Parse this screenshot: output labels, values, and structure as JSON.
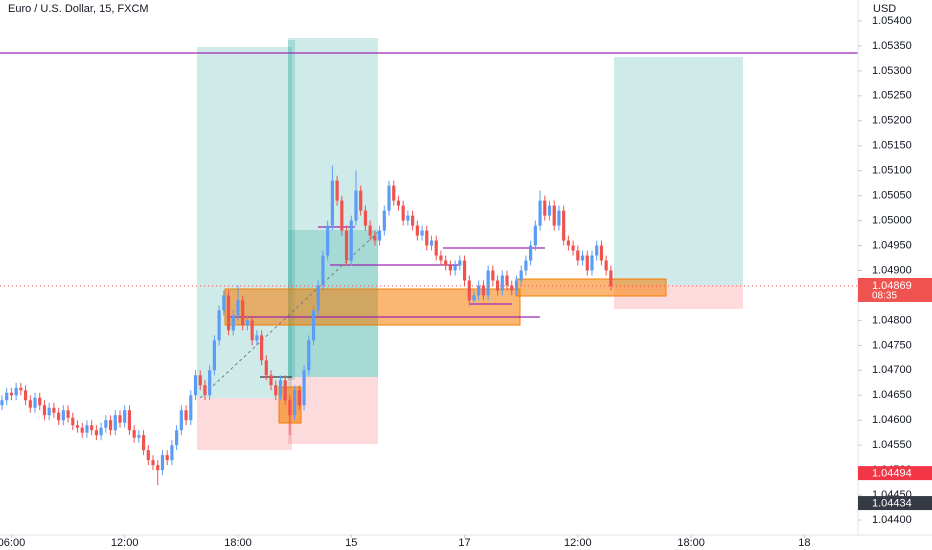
{
  "chart_data": {
    "type": "candlestick",
    "title": "Euro / U.S. Dollar, 15, FXCM",
    "currency": "USD",
    "up_color": "#5b9cf6",
    "down_color": "#ef5350",
    "grid": false,
    "xlim": [
      -0.42,
      181.36
    ],
    "xticks": [
      {
        "value": 2,
        "label": "06:00"
      },
      {
        "value": 26,
        "label": "12:00"
      },
      {
        "value": 50,
        "label": "18:00"
      },
      {
        "value": 74,
        "label": "15"
      },
      {
        "value": 98,
        "label": "17"
      },
      {
        "value": 122,
        "label": "12:00"
      },
      {
        "value": 146,
        "label": "18:00"
      },
      {
        "value": 170,
        "label": "18"
      }
    ],
    "ylim": [
      1.0437,
      1.05442
    ],
    "yticks": [
      {
        "value": 1.054,
        "label": "1.05400"
      },
      {
        "value": 1.0535,
        "label": "1.05350"
      },
      {
        "value": 1.053,
        "label": "1.05300"
      },
      {
        "value": 1.0525,
        "label": "1.05250"
      },
      {
        "value": 1.052,
        "label": "1.05200"
      },
      {
        "value": 1.0515,
        "label": "1.05150"
      },
      {
        "value": 1.051,
        "label": "1.05100"
      },
      {
        "value": 1.0505,
        "label": "1.05050"
      },
      {
        "value": 1.05,
        "label": "1.05000"
      },
      {
        "value": 1.0495,
        "label": "1.04950"
      },
      {
        "value": 1.049,
        "label": "1.04900"
      },
      {
        "value": 1.0485,
        "label": "1.04850"
      },
      {
        "value": 1.048,
        "label": "1.04800"
      },
      {
        "value": 1.0475,
        "label": "1.04750"
      },
      {
        "value": 1.047,
        "label": "1.04700"
      },
      {
        "value": 1.0465,
        "label": "1.04650"
      },
      {
        "value": 1.046,
        "label": "1.04600"
      },
      {
        "value": 1.0455,
        "label": "1.04550"
      },
      {
        "value": 1.045,
        "label": "1.04500"
      },
      {
        "value": 1.0445,
        "label": "1.04450"
      },
      {
        "value": 1.044,
        "label": "1.04400"
      }
    ],
    "x": [
      0,
      1,
      2,
      3,
      4,
      5,
      6,
      7,
      8,
      9,
      10,
      11,
      12,
      13,
      14,
      15,
      16,
      17,
      18,
      19,
      20,
      21,
      22,
      23,
      24,
      25,
      26,
      27,
      28,
      29,
      30,
      31,
      32,
      33,
      34,
      35,
      36,
      37,
      38,
      39,
      40,
      41,
      42,
      43,
      44,
      45,
      46,
      47,
      48,
      49,
      50,
      51,
      52,
      53,
      54,
      55,
      56,
      57,
      58,
      59,
      60,
      61,
      62,
      63,
      64,
      65,
      66,
      67,
      68,
      69,
      70,
      71,
      72,
      73,
      74,
      75,
      76,
      77,
      78,
      79,
      80,
      81,
      82,
      83,
      84,
      85,
      86,
      87,
      88,
      89,
      90,
      91,
      92,
      93,
      94,
      95,
      96,
      97,
      98,
      99,
      100,
      101,
      102,
      103,
      104,
      105,
      106,
      107,
      108,
      109,
      110,
      111,
      112,
      113,
      114,
      115,
      116,
      117,
      118,
      119,
      120,
      121,
      122,
      123,
      124,
      125,
      126,
      127,
      128,
      129
    ],
    "open": [
      1.0463,
      1.0464,
      1.04655,
      1.0465,
      1.04665,
      1.0466,
      1.0464,
      1.04625,
      1.04645,
      1.0463,
      1.0461,
      1.04625,
      1.04615,
      1.046,
      1.0462,
      1.04605,
      1.0459,
      1.04585,
      1.04575,
      1.0459,
      1.0458,
      1.0457,
      1.04585,
      1.046,
      1.0458,
      1.0461,
      1.04595,
      1.0462,
      1.0458,
      1.04565,
      1.0457,
      1.0454,
      1.0452,
      1.0451,
      1.045,
      1.0453,
      1.0452,
      1.0455,
      1.0458,
      1.0462,
      1.046,
      1.0465,
      1.0469,
      1.0467,
      1.0465,
      1.047,
      1.0476,
      1.0482,
      1.0485,
      1.0478,
      1.0481,
      1.0484,
      1.0479,
      1.048,
      1.0476,
      1.0477,
      1.0472,
      1.0469,
      1.0467,
      1.0465,
      1.0468,
      1.0464,
      1.0461,
      1.0466,
      1.0463,
      1.047,
      1.0476,
      1.0482,
      1.0487,
      1.0493,
      1.0499,
      1.0508,
      1.0504,
      1.0498,
      1.0492,
      1.05,
      1.0506,
      1.0502,
      1.0499,
      1.0497,
      1.0496,
      1.0498,
      1.0502,
      1.0507,
      1.0504,
      1.0503,
      1.05,
      1.0501,
      1.0499,
      1.0497,
      1.0498,
      1.0495,
      1.0496,
      1.0493,
      1.0492,
      1.0491,
      1.049,
      1.0491,
      1.0492,
      1.0488,
      1.0484,
      1.0485,
      1.0487,
      1.0485,
      1.049,
      1.0488,
      1.0486,
      1.0489,
      1.0487,
      1.0486,
      1.0488,
      1.049,
      1.0492,
      1.0495,
      1.0499,
      1.0504,
      1.0501,
      1.0503,
      1.0499,
      1.0502,
      1.0496,
      1.0495,
      1.0494,
      1.0492,
      1.0493,
      1.049,
      1.0493,
      1.0495,
      1.0492,
      1.049
    ],
    "high": [
      1.0465,
      1.04665,
      1.04665,
      1.04675,
      1.04675,
      1.0467,
      1.0465,
      1.04655,
      1.04655,
      1.0464,
      1.04635,
      1.04635,
      1.04625,
      1.0463,
      1.0463,
      1.04615,
      1.046,
      1.04595,
      1.046,
      1.046,
      1.0459,
      1.04595,
      1.0461,
      1.0461,
      1.0462,
      1.0462,
      1.0463,
      1.0463,
      1.0459,
      1.0458,
      1.0458,
      1.0455,
      1.0453,
      1.0452,
      1.0454,
      1.0454,
      1.0456,
      1.0459,
      1.0463,
      1.0463,
      1.0466,
      1.047,
      1.047,
      1.0468,
      1.0471,
      1.0477,
      1.0483,
      1.0486,
      1.0486,
      1.0482,
      1.0487,
      1.0485,
      1.0481,
      1.0481,
      1.0478,
      1.0478,
      1.0473,
      1.047,
      1.0468,
      1.0469,
      1.0469,
      1.0465,
      1.0467,
      1.0467,
      1.0471,
      1.0477,
      1.0483,
      1.0488,
      1.0494,
      1.05,
      1.0511,
      1.0509,
      1.0505,
      1.0499,
      1.0501,
      1.051,
      1.0507,
      1.0503,
      1.05,
      1.0498,
      1.0499,
      1.0503,
      1.0508,
      1.0508,
      1.0505,
      1.0504,
      1.0502,
      1.0502,
      1.05,
      1.0499,
      1.0499,
      1.0497,
      1.0497,
      1.0494,
      1.0493,
      1.0492,
      1.0492,
      1.0493,
      1.0493,
      1.0489,
      1.0486,
      1.0488,
      1.0488,
      1.0491,
      1.0491,
      1.0489,
      1.049,
      1.049,
      1.0488,
      1.0489,
      1.0491,
      1.0493,
      1.0496,
      1.05,
      1.0506,
      1.0505,
      1.0504,
      1.0504,
      1.0503,
      1.0503,
      1.0497,
      1.0496,
      1.0495,
      1.0494,
      1.0494,
      1.0494,
      1.0496,
      1.0496,
      1.0493,
      1.0491
    ],
    "low": [
      1.0462,
      1.0463,
      1.0464,
      1.0464,
      1.0465,
      1.0463,
      1.04615,
      1.04615,
      1.0462,
      1.046,
      1.046,
      1.04605,
      1.0459,
      1.0459,
      1.04595,
      1.0458,
      1.04575,
      1.04565,
      1.04565,
      1.0457,
      1.0456,
      1.0456,
      1.04575,
      1.0457,
      1.0457,
      1.04585,
      1.04585,
      1.0457,
      1.04555,
      1.04555,
      1.0453,
      1.0451,
      1.045,
      1.0447,
      1.0449,
      1.0451,
      1.0451,
      1.0454,
      1.0457,
      1.0459,
      1.0459,
      1.0464,
      1.0466,
      1.0464,
      1.0464,
      1.0469,
      1.0475,
      1.0481,
      1.0477,
      1.0477,
      1.048,
      1.0478,
      1.0478,
      1.0475,
      1.0475,
      1.0471,
      1.0468,
      1.0466,
      1.0464,
      1.0464,
      1.0463,
      1.0457,
      1.046,
      1.0462,
      1.0462,
      1.0469,
      1.0475,
      1.0481,
      1.0486,
      1.0492,
      1.0498,
      1.0503,
      1.0497,
      1.0491,
      1.0491,
      1.0499,
      1.0501,
      1.0498,
      1.0496,
      1.0495,
      1.0495,
      1.0497,
      1.0501,
      1.0503,
      1.0502,
      1.0499,
      1.0499,
      1.0498,
      1.0496,
      1.0496,
      1.0494,
      1.0494,
      1.0492,
      1.0491,
      1.049,
      1.0489,
      1.0489,
      1.049,
      1.0487,
      1.0483,
      1.0483,
      1.0484,
      1.0484,
      1.0484,
      1.0487,
      1.0485,
      1.0485,
      1.0486,
      1.0485,
      1.0485,
      1.0487,
      1.0489,
      1.0491,
      1.0494,
      1.0498,
      1.05,
      1.05,
      1.0498,
      1.0498,
      1.0495,
      1.0494,
      1.0493,
      1.0491,
      1.0491,
      1.0489,
      1.0489,
      1.0492,
      1.0491,
      1.0489,
      1.0486
    ],
    "close": [
      1.0464,
      1.04655,
      1.0465,
      1.04665,
      1.0466,
      1.0464,
      1.04625,
      1.04645,
      1.0463,
      1.0461,
      1.04625,
      1.04615,
      1.046,
      1.0462,
      1.04605,
      1.0459,
      1.04585,
      1.04575,
      1.0459,
      1.0458,
      1.0457,
      1.04585,
      1.046,
      1.0458,
      1.0461,
      1.04595,
      1.0462,
      1.0458,
      1.04565,
      1.0457,
      1.0454,
      1.0452,
      1.0451,
      1.045,
      1.0453,
      1.0452,
      1.0455,
      1.0458,
      1.0462,
      1.046,
      1.0465,
      1.0469,
      1.0467,
      1.0465,
      1.047,
      1.0476,
      1.0482,
      1.0485,
      1.0478,
      1.0481,
      1.0484,
      1.0479,
      1.048,
      1.0476,
      1.0477,
      1.0472,
      1.0469,
      1.0467,
      1.0465,
      1.0468,
      1.0464,
      1.0461,
      1.0466,
      1.0463,
      1.047,
      1.0476,
      1.0482,
      1.0487,
      1.0493,
      1.0499,
      1.0508,
      1.0504,
      1.0498,
      1.0492,
      1.05,
      1.0506,
      1.0502,
      1.0499,
      1.0497,
      1.0496,
      1.0498,
      1.0502,
      1.0507,
      1.0504,
      1.0503,
      1.05,
      1.0501,
      1.0499,
      1.0497,
      1.0498,
      1.0495,
      1.0496,
      1.0493,
      1.0492,
      1.0491,
      1.049,
      1.0491,
      1.0492,
      1.0488,
      1.0484,
      1.0485,
      1.0487,
      1.0485,
      1.049,
      1.0488,
      1.0486,
      1.0489,
      1.0487,
      1.0486,
      1.0488,
      1.049,
      1.0492,
      1.0495,
      1.0499,
      1.0504,
      1.0501,
      1.0503,
      1.0499,
      1.0502,
      1.0496,
      1.0495,
      1.0494,
      1.0492,
      1.0493,
      1.049,
      1.0493,
      1.0495,
      1.0492,
      1.049,
      1.04869
    ],
    "last_price": 1.04869,
    "countdown": "08:35",
    "price_markers": [
      {
        "value": 1.04494,
        "color": "#f23645"
      },
      {
        "value": 1.04434,
        "color": "#363a45"
      }
    ]
  }
}
